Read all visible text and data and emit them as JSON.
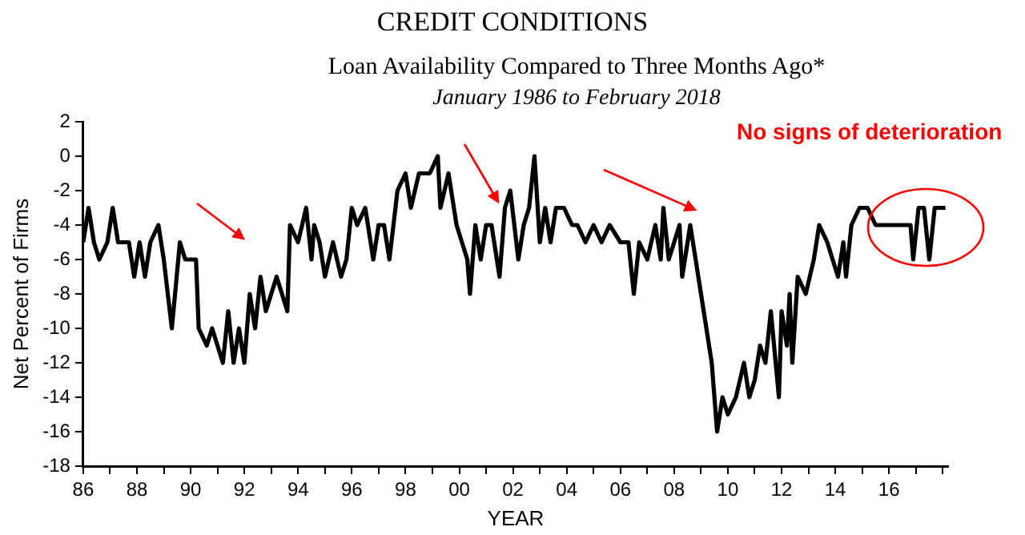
{
  "chart_data": {
    "type": "line",
    "title": "CREDIT CONDITIONS",
    "subtitle": "Loan Availability Compared to Three Months Ago*",
    "annotations": [
      "January 1986 to February 2018",
      "No signs of deterioration"
    ],
    "xlabel": "YEAR",
    "ylabel": "Net Percent of Firms",
    "x": [
      1986.0,
      1986.2,
      1986.4,
      1986.6,
      1986.9,
      1987.1,
      1987.3,
      1987.7,
      1987.9,
      1988.1,
      1988.3,
      1988.5,
      1988.8,
      1989.0,
      1989.3,
      1989.6,
      1989.8,
      1990.2,
      1990.3,
      1990.6,
      1990.8,
      1991.0,
      1991.2,
      1991.4,
      1991.6,
      1991.8,
      1992.0,
      1992.2,
      1992.4,
      1992.6,
      1992.8,
      1993.0,
      1993.2,
      1993.4,
      1993.6,
      1993.7,
      1994.0,
      1994.3,
      1994.5,
      1994.6,
      1994.8,
      1995.0,
      1995.3,
      1995.6,
      1995.8,
      1996.0,
      1996.2,
      1996.5,
      1996.8,
      1997.0,
      1997.2,
      1997.4,
      1997.7,
      1998.0,
      1998.2,
      1998.5,
      1998.9,
      1999.2,
      1999.3,
      1999.6,
      1999.9,
      2000.1,
      2000.3,
      2000.4,
      2000.6,
      2000.8,
      2001.0,
      2001.2,
      2001.5,
      2001.7,
      2001.9,
      2002.2,
      2002.4,
      2002.6,
      2002.8,
      2003.0,
      2003.2,
      2003.4,
      2003.6,
      2003.9,
      2004.2,
      2004.4,
      2004.7,
      2005.0,
      2005.3,
      2005.6,
      2006.0,
      2006.3,
      2006.5,
      2006.7,
      2007.0,
      2007.3,
      2007.5,
      2007.6,
      2007.8,
      2008.0,
      2008.2,
      2008.3,
      2008.6,
      2008.8,
      2009.0,
      2009.2,
      2009.4,
      2009.6,
      2009.8,
      2010.0,
      2010.3,
      2010.6,
      2010.8,
      2011.0,
      2011.2,
      2011.4,
      2011.6,
      2011.9,
      2012.0,
      2012.2,
      2012.3,
      2012.4,
      2012.6,
      2012.9,
      2013.2,
      2013.4,
      2013.7,
      2013.9,
      2014.1,
      2014.3,
      2014.4,
      2014.6,
      2014.9,
      2015.2,
      2015.5,
      2016.0,
      2016.4,
      2016.8,
      2016.9,
      2017.1,
      2017.3,
      2017.5,
      2017.7,
      2018.1
    ],
    "values": [
      -5,
      -3,
      -5,
      -6,
      -5,
      -3,
      -5,
      -5,
      -7,
      -5,
      -7,
      -5,
      -4,
      -6,
      -10,
      -5,
      -6,
      -6,
      -10,
      -11,
      -10,
      -11,
      -12,
      -9,
      -12,
      -10,
      -12,
      -8,
      -10,
      -7,
      -9,
      -8,
      -7,
      -8,
      -9,
      -4,
      -5,
      -3,
      -6,
      -4,
      -5,
      -7,
      -5,
      -7,
      -6,
      -3,
      -4,
      -3,
      -6,
      -4,
      -4,
      -6,
      -2,
      -1,
      -3,
      -1,
      -1,
      0,
      -3,
      -1,
      -4,
      -5,
      -6,
      -8,
      -4,
      -6,
      -4,
      -4,
      -7,
      -3,
      -2,
      -6,
      -4,
      -3,
      0,
      -5,
      -3,
      -5,
      -3,
      -3,
      -4,
      -4,
      -5,
      -4,
      -5,
      -4,
      -5,
      -5,
      -8,
      -5,
      -6,
      -4,
      -6,
      -3,
      -6,
      -5,
      -4,
      -7,
      -4,
      -6,
      -8,
      -10,
      -12,
      -16,
      -14,
      -15,
      -14,
      -12,
      -14,
      -13,
      -11,
      -12,
      -9,
      -14,
      -9,
      -11,
      -8,
      -12,
      -7,
      -8,
      -6,
      -4,
      -5,
      -6,
      -7,
      -5,
      -7,
      -4,
      -3,
      -3,
      -4,
      -4,
      -4,
      -4,
      -6,
      -3,
      -3,
      -6,
      -3,
      -3
    ],
    "color": "#000000",
    "xlim": [
      1986,
      2018.2
    ],
    "xticks": [
      {
        "value": 1986,
        "label": "86"
      },
      {
        "value": 1987,
        "label": null
      },
      {
        "value": 1988,
        "label": "88"
      },
      {
        "value": 1989,
        "label": null
      },
      {
        "value": 1990,
        "label": "90"
      },
      {
        "value": 1991,
        "label": null
      },
      {
        "value": 1992,
        "label": "92"
      },
      {
        "value": 1993,
        "label": null
      },
      {
        "value": 1994,
        "label": "94"
      },
      {
        "value": 1995,
        "label": null
      },
      {
        "value": 1996,
        "label": "96"
      },
      {
        "value": 1997,
        "label": null
      },
      {
        "value": 1998,
        "label": "98"
      },
      {
        "value": 1999,
        "label": null
      },
      {
        "value": 2000,
        "label": "00"
      },
      {
        "value": 2001,
        "label": null
      },
      {
        "value": 2002,
        "label": "02"
      },
      {
        "value": 2003,
        "label": null
      },
      {
        "value": 2004,
        "label": "04"
      },
      {
        "value": 2005,
        "label": null
      },
      {
        "value": 2006,
        "label": "06"
      },
      {
        "value": 2007,
        "label": null
      },
      {
        "value": 2008,
        "label": "08"
      },
      {
        "value": 2009,
        "label": null
      },
      {
        "value": 2010,
        "label": "10"
      },
      {
        "value": 2011,
        "label": null
      },
      {
        "value": 2012,
        "label": "12"
      },
      {
        "value": 2013,
        "label": null
      },
      {
        "value": 2014,
        "label": "14"
      },
      {
        "value": 2015,
        "label": null
      },
      {
        "value": 2016,
        "label": "16"
      },
      {
        "value": 2017,
        "label": null
      },
      {
        "value": 2018,
        "label": null
      }
    ],
    "ylim": [
      -18,
      2
    ],
    "yticks": [
      -18,
      -16,
      -14,
      -12,
      -10,
      -8,
      -6,
      -4,
      -2,
      0,
      2
    ],
    "grid": false,
    "legend": false,
    "marker": "none",
    "line_style": "solid"
  }
}
